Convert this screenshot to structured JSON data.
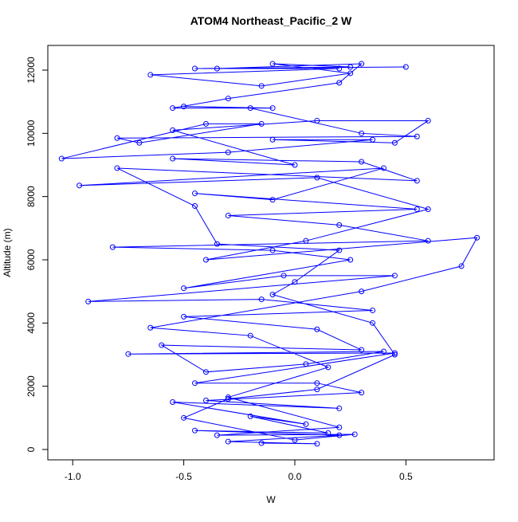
{
  "chart_data": {
    "type": "line",
    "title": "ATOM4 Northeast_Pacific_2 W",
    "x_label": "W",
    "y_label": "Altitude (m)",
    "xlim": [
      -1.112,
      0.897
    ],
    "ylim": [
      -328,
      12781
    ],
    "xticks": [
      {
        "value": -1,
        "label": "-1.0"
      },
      {
        "value": -0.5,
        "label": "-0.5"
      },
      {
        "value": 0,
        "label": "0.0"
      },
      0.5
    ],
    "yticks": [
      0,
      2000,
      4000,
      6000,
      8000,
      10000,
      12000
    ],
    "markers": "open-circle",
    "x": [
      -0.15,
      0.1,
      -0.3,
      0.2,
      -0.45,
      0.15,
      -0.2,
      0.05,
      -0.55,
      0.2,
      -0.4,
      0.3,
      0.1,
      -0.45,
      0.45,
      -0.75,
      0.4,
      0.05,
      -0.4,
      -0.6,
      0.3,
      0.1,
      -0.5,
      0.35,
      -0.15,
      -0.93,
      0.45,
      -0.05,
      -0.5,
      0.25,
      -0.1,
      -0.82,
      0.6,
      0.2,
      -0.3,
      0.55,
      -0.45,
      -0.1,
      0.4,
      -0.97,
      0.1,
      0.6,
      0.05,
      -0.4,
      0.82,
      0.75,
      0.3,
      -0.65,
      -0.2,
      0.15,
      -0.3,
      0.2,
      -0.35,
      0.27,
      0.0,
      -0.5,
      -0.3,
      0.1,
      0.45,
      0.35,
      -0.1,
      0.0,
      0.2,
      -0.35,
      -0.45,
      -0.8,
      0.55,
      0.3,
      -0.55,
      0.0,
      -0.55,
      0.1,
      0.6,
      0.45,
      -0.1,
      0.35,
      -0.3,
      -1.05,
      -0.4,
      -0.15,
      -0.7,
      -0.8,
      0.55,
      0.3,
      -0.2,
      -0.5,
      -0.1,
      -0.55,
      -0.3,
      0.2,
      0.3,
      -0.35,
      0.25,
      -0.1,
      0.25,
      -0.15,
      -0.65,
      0.2,
      -0.45,
      0.5
    ],
    "series": [
      {
        "color": "#0000ff",
        "values": [
          200,
          180,
          250,
          450,
          600,
          520,
          1050,
          800,
          1500,
          1300,
          1550,
          1800,
          2100,
          2100,
          3050,
          3020,
          3100,
          2700,
          2450,
          3300,
          3150,
          3800,
          4200,
          4400,
          4750,
          4680,
          5500,
          5500,
          5100,
          6000,
          6300,
          6400,
          6600,
          7100,
          7400,
          7600,
          8100,
          7900,
          8900,
          8350,
          8600,
          7600,
          6600,
          6000,
          6700,
          5800,
          5000,
          3850,
          3600,
          2600,
          1650,
          700,
          450,
          480,
          300,
          1000,
          1600,
          1900,
          3000,
          4000,
          4900,
          5300,
          6300,
          6500,
          7700,
          8900,
          8500,
          9100,
          9200,
          9000,
          10100,
          10400,
          10400,
          9700,
          9800,
          9800,
          9400,
          9200,
          10300,
          10300,
          9700,
          9850,
          9900,
          10000,
          10800,
          10850,
          10800,
          10800,
          11100,
          11600,
          12200,
          12050,
          12100,
          12200,
          11900,
          11500,
          11850,
          12050,
          12050,
          12100
        ]
      }
    ]
  }
}
